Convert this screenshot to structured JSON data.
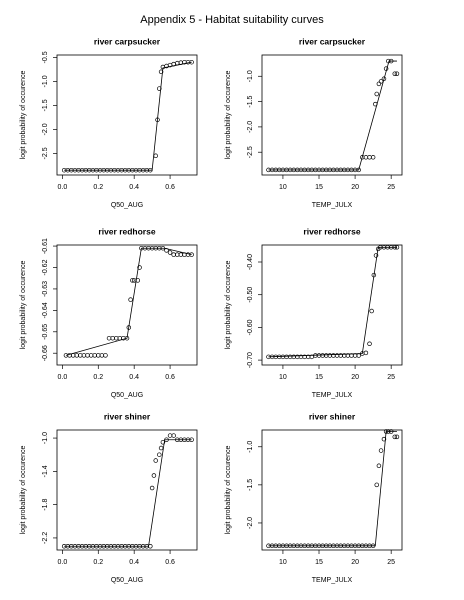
{
  "title": "Appendix 5 - Habitat suitability curves",
  "chart_data": [
    {
      "type": "scatter",
      "title": "river carpsucker",
      "xlabel": "Q50_AUG",
      "ylabel": "logit probability of occurence",
      "color": "#000000",
      "xlim": [
        -0.03,
        0.75
      ],
      "ylim": [
        -2.95,
        -0.45
      ],
      "xticks": [
        {
          "value": 0,
          "label": "0.0"
        },
        0.2,
        0.4,
        0.6
      ],
      "yticks": [
        -2.5,
        {
          "value": -2,
          "label": "-2.0"
        },
        -1.5,
        {
          "value": -1,
          "label": "-1.0"
        },
        -0.5
      ],
      "x": [
        0.01,
        0.03,
        0.05,
        0.07,
        0.09,
        0.11,
        0.13,
        0.15,
        0.17,
        0.19,
        0.21,
        0.23,
        0.25,
        0.27,
        0.29,
        0.31,
        0.33,
        0.35,
        0.37,
        0.39,
        0.41,
        0.43,
        0.45,
        0.47,
        0.49,
        0.52,
        0.53,
        0.54,
        0.55,
        0.56,
        0.58,
        0.6,
        0.62,
        0.64,
        0.66,
        0.68,
        0.7,
        0.72
      ],
      "values": [
        -2.85,
        -2.85,
        -2.85,
        -2.85,
        -2.85,
        -2.85,
        -2.85,
        -2.85,
        -2.85,
        -2.85,
        -2.85,
        -2.85,
        -2.85,
        -2.85,
        -2.85,
        -2.85,
        -2.85,
        -2.85,
        -2.85,
        -2.85,
        -2.85,
        -2.85,
        -2.85,
        -2.85,
        -2.85,
        -2.55,
        -1.8,
        -1.15,
        -0.8,
        -0.7,
        -0.68,
        -0.66,
        -0.64,
        -0.62,
        -0.61,
        -0.6,
        -0.6,
        -0.6
      ],
      "fit": {
        "x": [
          0.01,
          0.5,
          0.56,
          0.72
        ],
        "values": [
          -2.85,
          -2.85,
          -0.72,
          -0.6
        ]
      }
    },
    {
      "type": "scatter",
      "title": "river carpsucker",
      "xlabel": "TEMP_JULX",
      "ylabel": "logit probability of occurence",
      "color": "#000000",
      "xlim": [
        7.1,
        26.5
      ],
      "ylim": [
        -2.95,
        -0.58
      ],
      "xticks": [
        10,
        15,
        20,
        25
      ],
      "yticks": [
        -2.5,
        {
          "value": -2,
          "label": "-2.0"
        },
        -1.5,
        {
          "value": -1,
          "label": "-1.0"
        }
      ],
      "x": [
        8,
        8.5,
        9,
        9.5,
        10,
        10.5,
        11,
        11.5,
        12,
        12.5,
        13,
        13.5,
        14,
        14.5,
        15,
        15.5,
        16,
        16.5,
        17,
        17.5,
        18,
        18.5,
        19,
        19.5,
        20,
        20.5,
        21,
        21.5,
        22,
        22.5,
        22.8,
        23,
        23.3,
        23.6,
        24,
        24.3,
        24.6,
        25,
        25.5,
        25.8
      ],
      "values": [
        -2.85,
        -2.85,
        -2.85,
        -2.85,
        -2.85,
        -2.85,
        -2.85,
        -2.85,
        -2.85,
        -2.85,
        -2.85,
        -2.85,
        -2.85,
        -2.85,
        -2.85,
        -2.85,
        -2.85,
        -2.85,
        -2.85,
        -2.85,
        -2.85,
        -2.85,
        -2.85,
        -2.85,
        -2.85,
        -2.85,
        -2.6,
        -2.6,
        -2.6,
        -2.6,
        -1.55,
        -1.35,
        -1.15,
        -1.1,
        -1.05,
        -0.85,
        -0.7,
        -0.7,
        -0.95,
        -0.95
      ],
      "fit": {
        "x": [
          8,
          20.5,
          24.7,
          25.8
        ],
        "values": [
          -2.85,
          -2.85,
          -0.7,
          -0.7
        ]
      }
    },
    {
      "type": "scatter",
      "title": "river redhorse",
      "xlabel": "Q50_AUG",
      "ylabel": "logit probability of occurence",
      "color": "#000000",
      "xlim": [
        -0.03,
        0.75
      ],
      "ylim": [
        -0.6655,
        -0.6095
      ],
      "xticks": [
        {
          "value": 0,
          "label": "0.0"
        },
        0.2,
        0.4,
        0.6
      ],
      "yticks": [
        -0.66,
        -0.65,
        -0.64,
        -0.63,
        -0.62,
        -0.61
      ],
      "x": [
        0.02,
        0.04,
        0.06,
        0.08,
        0.1,
        0.12,
        0.14,
        0.16,
        0.18,
        0.2,
        0.22,
        0.24,
        0.26,
        0.28,
        0.3,
        0.32,
        0.34,
        0.36,
        0.37,
        0.38,
        0.39,
        0.4,
        0.42,
        0.43,
        0.44,
        0.46,
        0.48,
        0.5,
        0.52,
        0.54,
        0.56,
        0.58,
        0.6,
        0.62,
        0.64,
        0.66,
        0.68,
        0.7,
        0.72
      ],
      "values": [
        -0.661,
        -0.661,
        -0.661,
        -0.661,
        -0.661,
        -0.661,
        -0.661,
        -0.661,
        -0.661,
        -0.661,
        -0.661,
        -0.661,
        -0.653,
        -0.653,
        -0.653,
        -0.653,
        -0.653,
        -0.653,
        -0.648,
        -0.635,
        -0.626,
        -0.626,
        -0.626,
        -0.62,
        -0.611,
        -0.611,
        -0.611,
        -0.611,
        -0.611,
        -0.611,
        -0.611,
        -0.612,
        -0.613,
        -0.614,
        -0.614,
        -0.614,
        -0.614,
        -0.614,
        -0.614
      ],
      "fit": {
        "x": [
          0.02,
          0.36,
          0.44,
          0.57,
          0.72
        ],
        "values": [
          -0.661,
          -0.653,
          -0.611,
          -0.611,
          -0.614
        ]
      }
    },
    {
      "type": "scatter",
      "title": "river redhorse",
      "xlabel": "TEMP_JULX",
      "ylabel": "logit probability of occurence",
      "color": "#000000",
      "xlim": [
        7.1,
        26.5
      ],
      "ylim": [
        -0.715,
        -0.348
      ],
      "xticks": [
        10,
        15,
        20,
        25
      ],
      "yticks": [
        {
          "value": -0.7,
          "label": "-0.70"
        },
        {
          "value": -0.6,
          "label": "-0.60"
        },
        {
          "value": -0.5,
          "label": "-0.50"
        },
        {
          "value": -0.4,
          "label": "-0.40"
        }
      ],
      "x": [
        8,
        8.5,
        9,
        9.5,
        10,
        10.5,
        11,
        11.5,
        12,
        12.5,
        13,
        13.5,
        14,
        14.5,
        15,
        15.5,
        16,
        16.5,
        17,
        17.5,
        18,
        18.5,
        19,
        19.5,
        20,
        20.5,
        21,
        21.5,
        22,
        22.3,
        22.6,
        22.9,
        23.2,
        23.5,
        24,
        24.5,
        25,
        25.5,
        25.8
      ],
      "values": [
        -0.69,
        -0.69,
        -0.69,
        -0.69,
        -0.69,
        -0.69,
        -0.69,
        -0.69,
        -0.69,
        -0.69,
        -0.69,
        -0.69,
        -0.69,
        -0.686,
        -0.686,
        -0.686,
        -0.686,
        -0.686,
        -0.686,
        -0.686,
        -0.686,
        -0.686,
        -0.686,
        -0.686,
        -0.686,
        -0.686,
        -0.68,
        -0.678,
        -0.65,
        -0.55,
        -0.44,
        -0.38,
        -0.36,
        -0.355,
        -0.355,
        -0.355,
        -0.355,
        -0.355,
        -0.355
      ],
      "fit": {
        "x": [
          8,
          21,
          23.2,
          25.8
        ],
        "values": [
          -0.69,
          -0.68,
          -0.355,
          -0.355
        ]
      }
    },
    {
      "type": "scatter",
      "title": "river shiner",
      "xlabel": "Q50_AUG",
      "ylabel": "logit probability of occurence",
      "color": "#000000",
      "xlim": [
        -0.03,
        0.75
      ],
      "ylim": [
        -2.345,
        -0.903
      ],
      "xticks": [
        {
          "value": 0,
          "label": "0.0"
        },
        0.2,
        0.4,
        0.6
      ],
      "yticks": [
        -2.2,
        -1.8,
        -1.4,
        {
          "value": -1,
          "label": "-1.0"
        }
      ],
      "x": [
        0.01,
        0.03,
        0.05,
        0.07,
        0.09,
        0.11,
        0.13,
        0.15,
        0.17,
        0.19,
        0.21,
        0.23,
        0.25,
        0.27,
        0.29,
        0.31,
        0.33,
        0.35,
        0.37,
        0.39,
        0.41,
        0.43,
        0.45,
        0.47,
        0.49,
        0.5,
        0.51,
        0.52,
        0.54,
        0.55,
        0.56,
        0.58,
        0.6,
        0.62,
        0.64,
        0.66,
        0.68,
        0.7,
        0.72
      ],
      "values": [
        -2.3,
        -2.3,
        -2.3,
        -2.3,
        -2.3,
        -2.3,
        -2.3,
        -2.3,
        -2.3,
        -2.3,
        -2.3,
        -2.3,
        -2.3,
        -2.3,
        -2.3,
        -2.3,
        -2.3,
        -2.3,
        -2.3,
        -2.3,
        -2.3,
        -2.3,
        -2.3,
        -2.3,
        -2.3,
        -1.6,
        -1.45,
        -1.27,
        -1.2,
        -1.12,
        -1.05,
        -1.02,
        -0.97,
        -0.97,
        -1.02,
        -1.02,
        -1.02,
        -1.02,
        -1.02
      ],
      "fit": {
        "x": [
          0.01,
          0.48,
          0.57,
          0.72
        ],
        "values": [
          -2.3,
          -2.3,
          -1.02,
          -1.02
        ]
      }
    },
    {
      "type": "scatter",
      "title": "river shiner",
      "xlabel": "TEMP_JULX",
      "ylabel": "logit probability of occurence",
      "color": "#000000",
      "xlim": [
        7.1,
        26.5
      ],
      "ylim": [
        -2.355,
        -0.78
      ],
      "xticks": [
        10,
        15,
        20,
        25
      ],
      "yticks": [
        {
          "value": -2,
          "label": "-2.0"
        },
        -1.5,
        {
          "value": -1,
          "label": "-1.0"
        }
      ],
      "x": [
        8,
        8.5,
        9,
        9.5,
        10,
        10.5,
        11,
        11.5,
        12,
        12.5,
        13,
        13.5,
        14,
        14.5,
        15,
        15.5,
        16,
        16.5,
        17,
        17.5,
        18,
        18.5,
        19,
        19.5,
        20,
        20.5,
        21,
        21.5,
        22,
        22.5,
        23,
        23.3,
        23.6,
        24,
        24.3,
        24.6,
        25,
        25.5,
        25.8
      ],
      "values": [
        -2.3,
        -2.3,
        -2.3,
        -2.3,
        -2.3,
        -2.3,
        -2.3,
        -2.3,
        -2.3,
        -2.3,
        -2.3,
        -2.3,
        -2.3,
        -2.3,
        -2.3,
        -2.3,
        -2.3,
        -2.3,
        -2.3,
        -2.3,
        -2.3,
        -2.3,
        -2.3,
        -2.3,
        -2.3,
        -2.3,
        -2.3,
        -2.3,
        -2.3,
        -2.3,
        -1.5,
        -1.25,
        -1.05,
        -0.9,
        -0.8,
        -0.8,
        -0.8,
        -0.87,
        -0.87
      ],
      "fit": {
        "x": [
          8,
          22.8,
          24.3,
          25.8
        ],
        "values": [
          -2.3,
          -2.3,
          -0.8,
          -0.8
        ]
      }
    }
  ]
}
